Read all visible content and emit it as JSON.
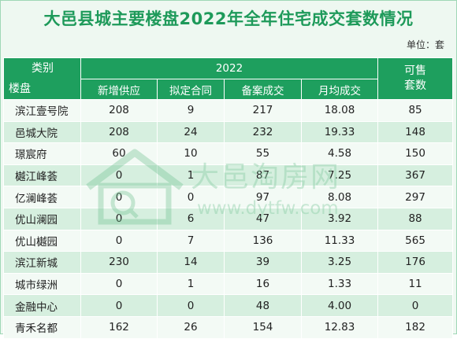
{
  "title": "大邑县城主要楼盘2022年全年住宅成交套数情况",
  "unit": "单位：套",
  "table": {
    "corner_top": "类别",
    "corner_bottom": "楼盘",
    "year": "2022",
    "available_line1": "可售",
    "available_line2": "套数",
    "sub_headers": [
      "新增供应",
      "拟定合同",
      "备案成交",
      "月均成交"
    ],
    "rows": [
      {
        "name": "滨江壹号院",
        "supply": "208",
        "contract": "9",
        "filed": "217",
        "monthly": "18.08",
        "available": "85"
      },
      {
        "name": "邑城大院",
        "supply": "208",
        "contract": "24",
        "filed": "232",
        "monthly": "19.33",
        "available": "148"
      },
      {
        "name": "璟宸府",
        "supply": "60",
        "contract": "10",
        "filed": "55",
        "monthly": "4.58",
        "available": "150"
      },
      {
        "name": "樾江峰荟",
        "supply": "0",
        "contract": "1",
        "filed": "87",
        "monthly": "7.25",
        "available": "367"
      },
      {
        "name": "亿澜峰荟",
        "supply": "0",
        "contract": "0",
        "filed": "97",
        "monthly": "8.08",
        "available": "297"
      },
      {
        "name": "优山澜园",
        "supply": "0",
        "contract": "6",
        "filed": "47",
        "monthly": "3.92",
        "available": "88"
      },
      {
        "name": "优山樾园",
        "supply": "0",
        "contract": "7",
        "filed": "136",
        "monthly": "11.33",
        "available": "565"
      },
      {
        "name": "滨江新城",
        "supply": "230",
        "contract": "14",
        "filed": "39",
        "monthly": "3.25",
        "available": "176"
      },
      {
        "name": "城市绿洲",
        "supply": "0",
        "contract": "1",
        "filed": "16",
        "monthly": "1.33",
        "available": "11"
      },
      {
        "name": "金融中心",
        "supply": "0",
        "contract": "0",
        "filed": "48",
        "monthly": "4.00",
        "available": "0"
      },
      {
        "name": "青禾名都",
        "supply": "162",
        "contract": "26",
        "filed": "154",
        "monthly": "12.83",
        "available": "182"
      }
    ]
  },
  "watermark": {
    "text": "大邑淘房网",
    "url": "www.dytfw.com",
    "logo_icon": "house-logo-icon"
  },
  "colors": {
    "title": "#1e9a5a",
    "header_bg": "#1e9f5e",
    "row_light": "#f3faf5",
    "row_dark": "#d6efdf"
  }
}
